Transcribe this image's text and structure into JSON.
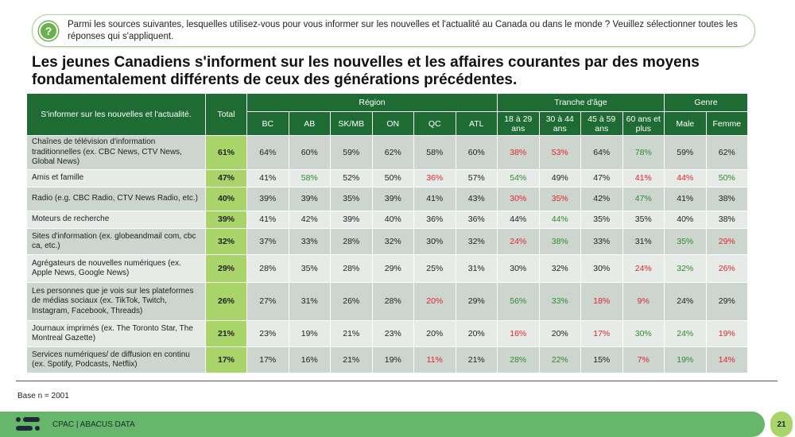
{
  "question": {
    "icon": "question-icon",
    "text": "Parmi les sources suivantes, lesquelles utilisez-vous pour vous informer sur les nouvelles et l'actualité au Canada ou dans le monde ? Veuillez sélectionner toutes les réponses qui s'appliquent."
  },
  "title": "Les jeunes Canadiens s'informent sur les nouvelles et les affaires courantes par des moyens fondamentalement différents de ceux des générations précédentes.",
  "colors": {
    "header": "#1f6b34",
    "total": "#a9d46a",
    "g": "#2e8b2e",
    "r": "#e0242b"
  },
  "table": {
    "corner": "S'informer sur les nouvelles et l'actualité.",
    "total": "Total",
    "groups": [
      {
        "label": "Région",
        "span": 6
      },
      {
        "label": "Tranche d'âge",
        "span": 4
      },
      {
        "label": "Genre",
        "span": 2
      }
    ],
    "columns": [
      "BC",
      "AB",
      "SK/MB",
      "ON",
      "QC",
      "ATL",
      "18 à 29 ans",
      "30 à 44 ans",
      "45 à 59 ans",
      "60 ans et plus",
      "Male",
      "Femme"
    ],
    "rows": [
      {
        "label": "Chaînes de télévision d'information traditionnelles (ex. CBC News, CTV News, Global News)",
        "total": "61%",
        "cells": [
          [
            "64%",
            ""
          ],
          [
            "60%",
            ""
          ],
          [
            "59%",
            ""
          ],
          [
            "62%",
            ""
          ],
          [
            "58%",
            ""
          ],
          [
            "60%",
            ""
          ],
          [
            "38%",
            "r"
          ],
          [
            "53%",
            "r"
          ],
          [
            "64%",
            ""
          ],
          [
            "78%",
            "g"
          ],
          [
            "59%",
            ""
          ],
          [
            "62%",
            ""
          ]
        ]
      },
      {
        "label": "Amis et famille",
        "total": "47%",
        "cells": [
          [
            "41%",
            ""
          ],
          [
            "58%",
            "g"
          ],
          [
            "52%",
            ""
          ],
          [
            "50%",
            ""
          ],
          [
            "36%",
            "r"
          ],
          [
            "57%",
            ""
          ],
          [
            "54%",
            "g"
          ],
          [
            "49%",
            ""
          ],
          [
            "47%",
            ""
          ],
          [
            "41%",
            "r"
          ],
          [
            "44%",
            "r"
          ],
          [
            "50%",
            "g"
          ]
        ]
      },
      {
        "label": "Radio (e.g. CBC Radio, CTV News Radio, etc.)",
        "total": "40%",
        "cells": [
          [
            "39%",
            ""
          ],
          [
            "39%",
            ""
          ],
          [
            "35%",
            ""
          ],
          [
            "39%",
            ""
          ],
          [
            "41%",
            ""
          ],
          [
            "43%",
            ""
          ],
          [
            "30%",
            "r"
          ],
          [
            "35%",
            "r"
          ],
          [
            "42%",
            ""
          ],
          [
            "47%",
            "g"
          ],
          [
            "41%",
            ""
          ],
          [
            "38%",
            ""
          ]
        ]
      },
      {
        "label": "Moteurs de recherche",
        "total": "39%",
        "cells": [
          [
            "41%",
            ""
          ],
          [
            "42%",
            ""
          ],
          [
            "39%",
            ""
          ],
          [
            "40%",
            ""
          ],
          [
            "36%",
            ""
          ],
          [
            "36%",
            ""
          ],
          [
            "44%",
            ""
          ],
          [
            "44%",
            "g"
          ],
          [
            "35%",
            ""
          ],
          [
            "35%",
            ""
          ],
          [
            "40%",
            ""
          ],
          [
            "38%",
            ""
          ]
        ]
      },
      {
        "label": "Sites d'information (ex. globeandmail com, cbc ca, etc.)",
        "total": "32%",
        "cells": [
          [
            "37%",
            ""
          ],
          [
            "33%",
            ""
          ],
          [
            "28%",
            ""
          ],
          [
            "32%",
            ""
          ],
          [
            "30%",
            ""
          ],
          [
            "32%",
            ""
          ],
          [
            "24%",
            "r"
          ],
          [
            "38%",
            "g"
          ],
          [
            "33%",
            ""
          ],
          [
            "31%",
            ""
          ],
          [
            "35%",
            "g"
          ],
          [
            "29%",
            "r"
          ]
        ]
      },
      {
        "label": "Agrégateurs de nouvelles numériques (ex. Apple News, Google News)",
        "total": "29%",
        "cells": [
          [
            "28%",
            ""
          ],
          [
            "35%",
            ""
          ],
          [
            "28%",
            ""
          ],
          [
            "29%",
            ""
          ],
          [
            "25%",
            ""
          ],
          [
            "31%",
            ""
          ],
          [
            "30%",
            ""
          ],
          [
            "32%",
            ""
          ],
          [
            "30%",
            ""
          ],
          [
            "24%",
            "r"
          ],
          [
            "32%",
            "g"
          ],
          [
            "26%",
            "r"
          ]
        ]
      },
      {
        "label": "Les personnes que je vois sur les plateformes de médias sociaux (ex. TikTok, Twitch, Instagram, Facebook, Threads)",
        "total": "26%",
        "cells": [
          [
            "27%",
            ""
          ],
          [
            "31%",
            ""
          ],
          [
            "26%",
            ""
          ],
          [
            "28%",
            ""
          ],
          [
            "20%",
            "r"
          ],
          [
            "29%",
            ""
          ],
          [
            "56%",
            "g"
          ],
          [
            "33%",
            "g"
          ],
          [
            "18%",
            "r"
          ],
          [
            "9%",
            "r"
          ],
          [
            "24%",
            ""
          ],
          [
            "29%",
            ""
          ]
        ]
      },
      {
        "label": "Journaux imprimés (ex. The Toronto Star, The Montreal Gazette)",
        "total": "21%",
        "cells": [
          [
            "23%",
            ""
          ],
          [
            "19%",
            ""
          ],
          [
            "21%",
            ""
          ],
          [
            "23%",
            ""
          ],
          [
            "20%",
            ""
          ],
          [
            "20%",
            ""
          ],
          [
            "16%",
            "r"
          ],
          [
            "20%",
            ""
          ],
          [
            "17%",
            "r"
          ],
          [
            "30%",
            "g"
          ],
          [
            "24%",
            "g"
          ],
          [
            "19%",
            "r"
          ]
        ]
      },
      {
        "label": "Services numériques/ de diffusion en continu (ex. Spotify, Podcasts, Netflix)",
        "total": "17%",
        "cells": [
          [
            "17%",
            ""
          ],
          [
            "16%",
            ""
          ],
          [
            "21%",
            ""
          ],
          [
            "19%",
            ""
          ],
          [
            "11%",
            "r"
          ],
          [
            "21%",
            ""
          ],
          [
            "28%",
            "g"
          ],
          [
            "22%",
            "g"
          ],
          [
            "15%",
            ""
          ],
          [
            "7%",
            "r"
          ],
          [
            "19%",
            "g"
          ],
          [
            "14%",
            "r"
          ]
        ]
      }
    ]
  },
  "base": "Base n = 2001",
  "footer": {
    "brand": "CPAC | ABACUS DATA",
    "page": "21"
  }
}
